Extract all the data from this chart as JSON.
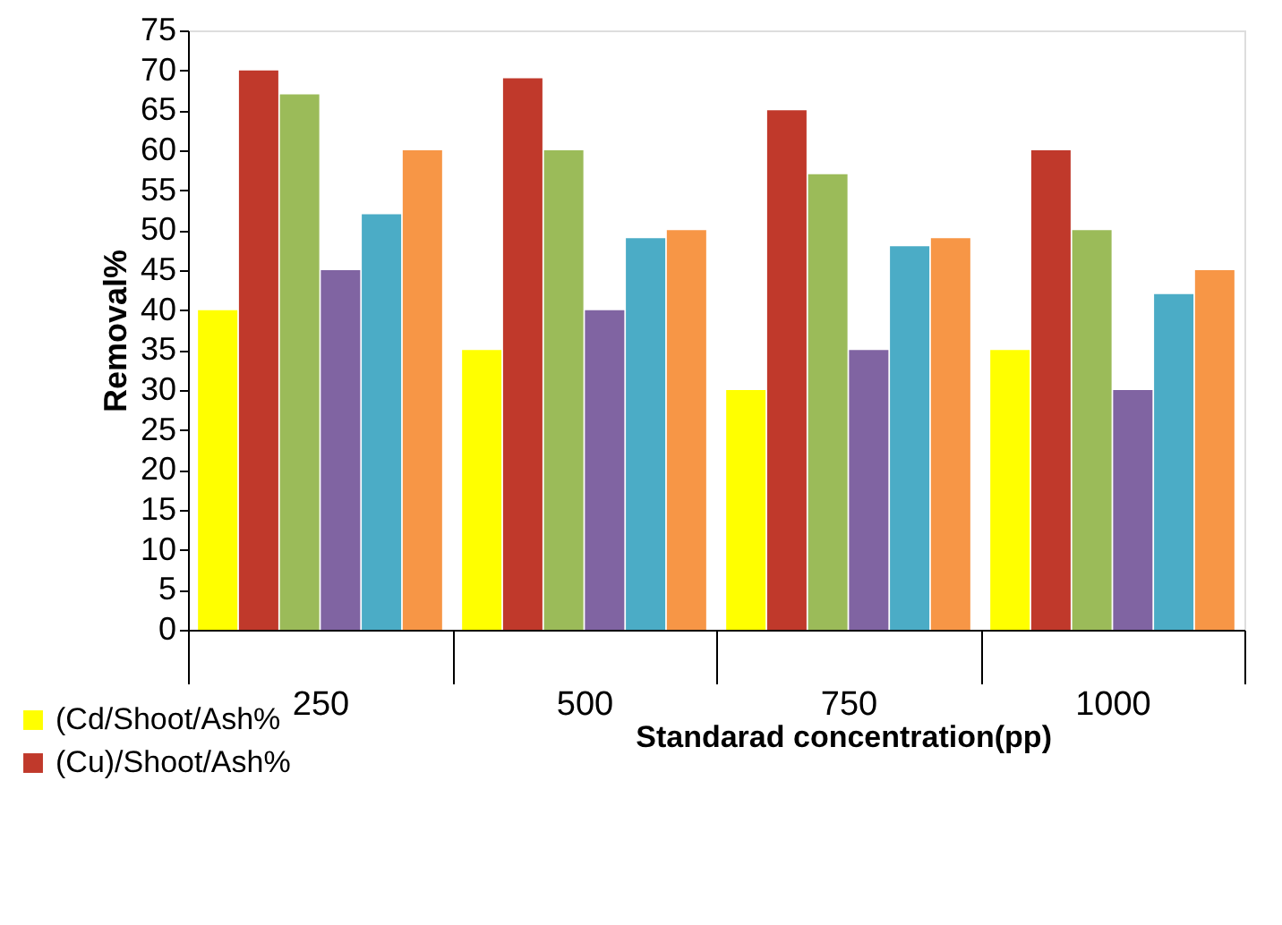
{
  "chart_data": {
    "type": "bar",
    "xlabel": "Standarad concentration(pp)",
    "ylabel": "Removal%",
    "categories": [
      "250",
      "500",
      "750",
      "1000"
    ],
    "series": [
      {
        "name": "(Cd/Shoot/Ash%",
        "color": "#ffff00",
        "values": [
          40,
          35,
          30,
          35
        ]
      },
      {
        "name": "(Cu)/Shoot/Ash%",
        "color": "#c0392b",
        "values": [
          70,
          69,
          65,
          60
        ]
      },
      {
        "color": "#9bbb59",
        "values": [
          67,
          60,
          57,
          50
        ]
      },
      {
        "color": "#8064a2",
        "values": [
          45,
          40,
          35,
          30
        ]
      },
      {
        "color": "#4bacc6",
        "values": [
          52,
          49,
          48,
          42
        ]
      },
      {
        "color": "#f79646",
        "values": [
          60,
          50,
          49,
          45
        ]
      }
    ],
    "ylim": [
      0,
      75
    ],
    "yticks": [
      0,
      5,
      10,
      15,
      20,
      25,
      30,
      35,
      40,
      45,
      50,
      55,
      60,
      65,
      70,
      75
    ],
    "grid": false,
    "legend": "bottom left"
  }
}
